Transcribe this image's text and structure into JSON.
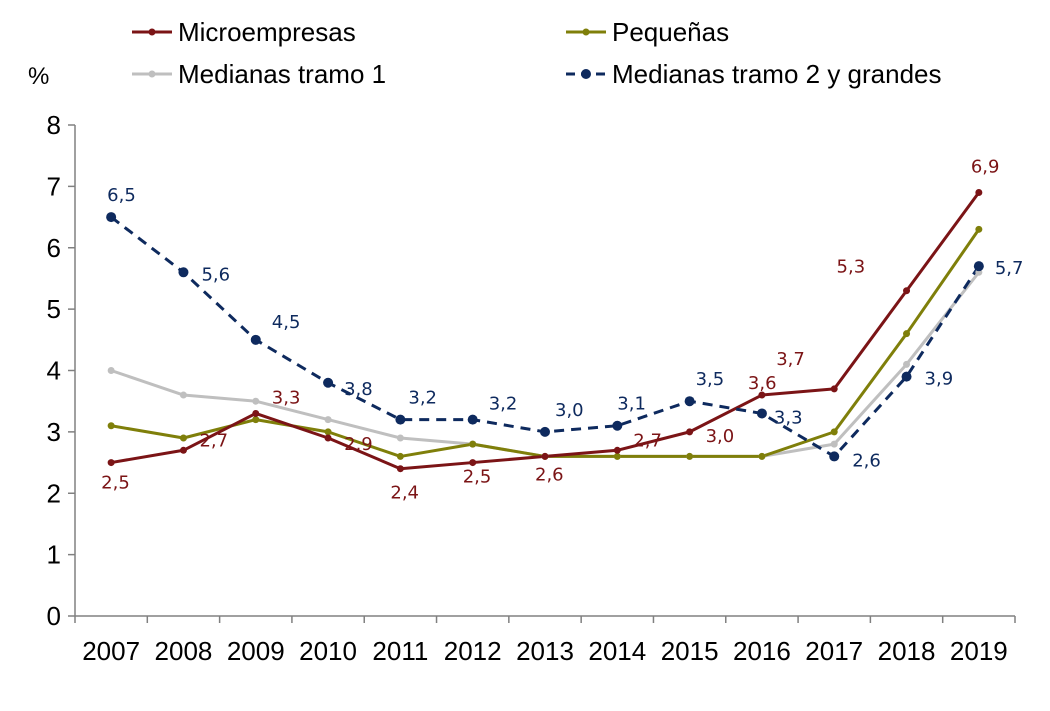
{
  "chart_data": {
    "type": "line",
    "ylabel": "%",
    "ylim": [
      0,
      8
    ],
    "yticks": [
      "0",
      "1",
      "2",
      "3",
      "4",
      "5",
      "6",
      "7",
      "8"
    ],
    "categories": [
      "2007",
      "2008",
      "2009",
      "2010",
      "2011",
      "2012",
      "2013",
      "2014",
      "2015",
      "2016",
      "2017",
      "2018",
      "2019"
    ],
    "grid": false,
    "legend": "top",
    "series": [
      {
        "name": "Microempresas",
        "color": "#7B1416",
        "dash": false,
        "values": [
          2.5,
          2.7,
          3.3,
          2.9,
          2.4,
          2.5,
          2.6,
          2.7,
          3.0,
          3.6,
          3.7,
          5.3,
          6.9
        ],
        "labels": [
          "2,5",
          "2,7",
          "3,3",
          "2,9",
          "2,4",
          "2,5",
          "2,6",
          "2,7",
          "3,0",
          "3,6",
          "3,7",
          "5,3",
          "6,9"
        ]
      },
      {
        "name": "Pequeñas",
        "color": "#7F7F0A",
        "dash": false,
        "values": [
          3.1,
          2.9,
          3.2,
          3.0,
          2.6,
          2.8,
          2.6,
          2.6,
          2.6,
          2.6,
          3.0,
          4.6,
          6.3
        ],
        "labels": []
      },
      {
        "name": "Medianas tramo 1",
        "color": "#BFBFBF",
        "dash": false,
        "values": [
          4.0,
          3.6,
          3.5,
          3.2,
          2.9,
          2.8,
          2.6,
          2.6,
          2.6,
          2.6,
          2.8,
          4.1,
          5.6
        ],
        "labels": []
      },
      {
        "name": "Medianas tramo 2 y grandes",
        "color": "#0E2A5E",
        "dash": true,
        "values": [
          6.5,
          5.6,
          4.5,
          3.8,
          3.2,
          3.2,
          3.0,
          3.1,
          3.5,
          3.3,
          2.6,
          3.9,
          5.7
        ],
        "labels": [
          "6,5",
          "5,6",
          "4,5",
          "3,8",
          "3,2",
          "3,2",
          "3,0",
          "3,1",
          "3,5",
          "3,3",
          "2,6",
          "3,9",
          "5,7"
        ]
      }
    ]
  }
}
